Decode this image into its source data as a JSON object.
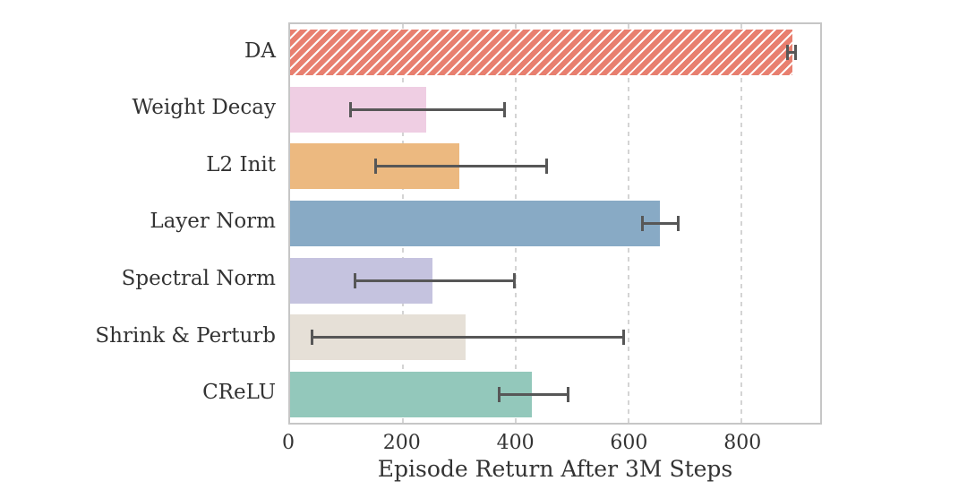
{
  "figure": {
    "background_color": "#ffffff",
    "frame_color": "#c6c6c6",
    "text_color": "#333333"
  },
  "chart_data": {
    "type": "bar",
    "orientation": "horizontal",
    "title": "",
    "xlabel": "Episode Return After 3M Steps",
    "ylabel": "",
    "xlim": [
      0,
      940
    ],
    "xticks": [
      0,
      200,
      400,
      600,
      800
    ],
    "grid": "vertical-dashed",
    "legend": "none",
    "categories": [
      "DA",
      "Weight Decay",
      "L2 Init",
      "Layer Norm",
      "Spectral Norm",
      "Shrink & Perturb",
      "CReLU"
    ],
    "values": [
      890,
      242,
      300,
      655,
      253,
      311,
      428
    ],
    "error_low": [
      880,
      105,
      150,
      622,
      113,
      36,
      368
    ],
    "error_high": [
      899,
      382,
      458,
      690,
      400,
      594,
      496
    ],
    "colors": [
      "#e87f6f",
      "#efcee3",
      "#ecb980",
      "#88aac5",
      "#c5c3df",
      "#e6e0d7",
      "#93c8bb"
    ],
    "hatched": [
      true,
      false,
      false,
      false,
      false,
      false,
      false
    ],
    "hatch_pattern": "diagonal-forward-slash",
    "hatch_color": "#ffffff",
    "error_bar_color": "#575757",
    "grid_color": "#d4d4d4"
  }
}
